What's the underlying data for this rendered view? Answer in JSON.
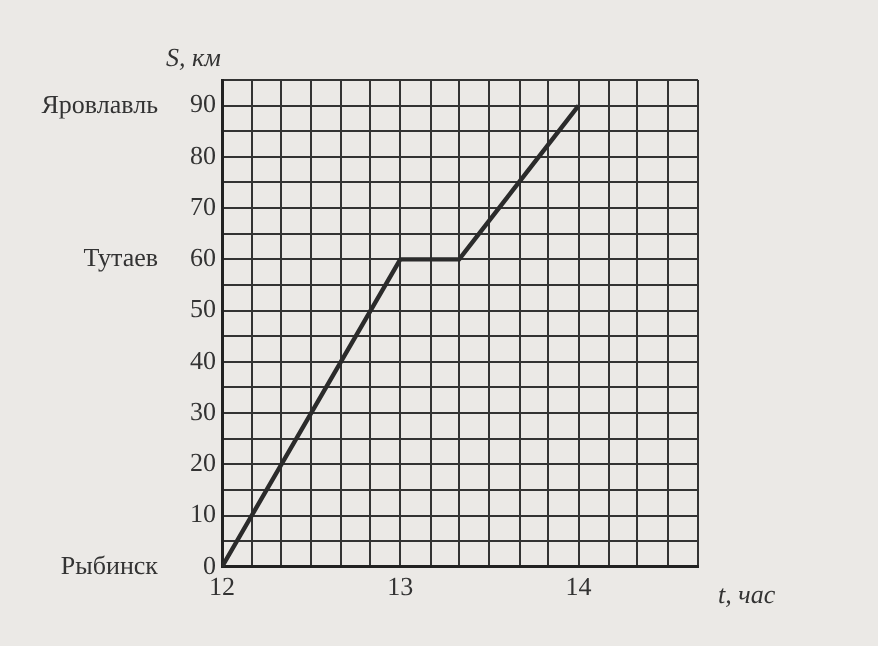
{
  "chart_data": {
    "type": "line",
    "xlabel": "t, час",
    "ylabel": "S, км",
    "x": [
      12,
      13,
      13.33,
      14
    ],
    "series": [
      {
        "color": "#2b2b2b",
        "values": [
          0,
          60,
          60,
          90
        ]
      }
    ],
    "xlim": [
      12,
      14.67
    ],
    "ylim": [
      0,
      95
    ],
    "xticks": [
      12,
      {
        "value": 12.17,
        "label": null
      },
      {
        "value": 12.33,
        "label": null
      },
      {
        "value": 12.5,
        "label": null
      },
      {
        "value": 12.67,
        "label": null
      },
      {
        "value": 12.83,
        "label": null
      },
      13,
      {
        "value": 13.17,
        "label": null
      },
      {
        "value": 13.33,
        "label": null
      },
      {
        "value": 13.5,
        "label": null
      },
      {
        "value": 13.67,
        "label": null
      },
      {
        "value": 13.83,
        "label": null
      },
      14,
      {
        "value": 14.17,
        "label": null
      },
      {
        "value": 14.33,
        "label": null
      },
      {
        "value": 14.5,
        "label": null
      },
      {
        "value": 14.67,
        "label": null
      }
    ],
    "yticks": [
      0,
      {
        "value": 5,
        "label": null
      },
      10,
      {
        "value": 15,
        "label": null
      },
      20,
      {
        "value": 25,
        "label": null
      },
      30,
      {
        "value": 35,
        "label": null
      },
      40,
      {
        "value": 45,
        "label": null
      },
      50,
      {
        "value": 55,
        "label": null
      },
      60,
      {
        "value": 65,
        "label": null
      },
      70,
      {
        "value": 75,
        "label": null
      },
      80,
      {
        "value": 85,
        "label": null
      },
      90,
      {
        "value": 95,
        "label": null
      }
    ],
    "annotations": [
      "Яровлавль",
      "Тутаев",
      "Рыбинск"
    ],
    "grid": true,
    "legend": false,
    "marker": "none",
    "line_style": "solid"
  }
}
